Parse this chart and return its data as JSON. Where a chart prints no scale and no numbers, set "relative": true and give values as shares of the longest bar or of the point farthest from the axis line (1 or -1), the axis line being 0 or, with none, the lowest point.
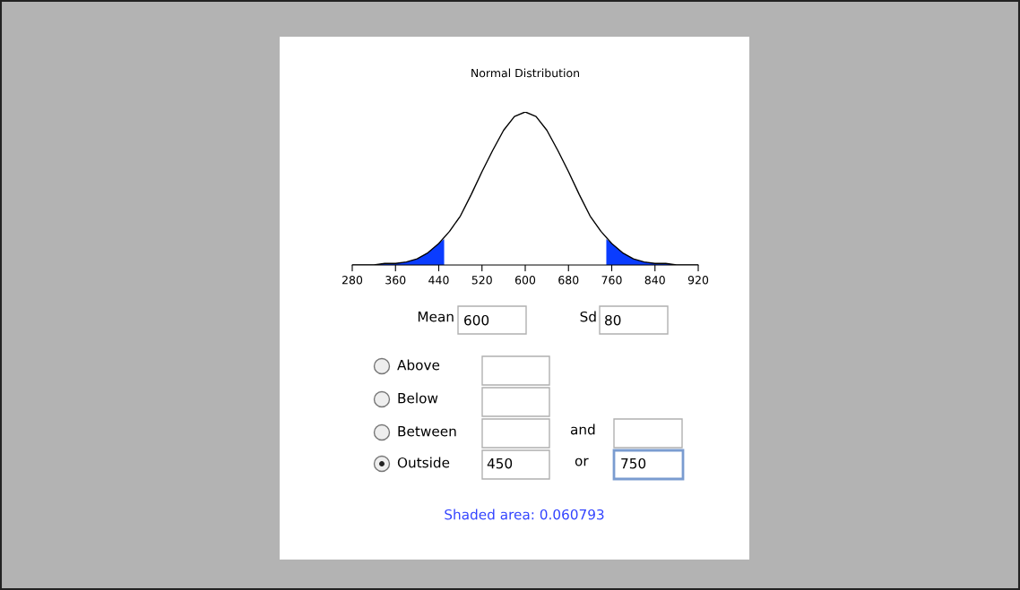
{
  "chart_data": {
    "type": "line",
    "title": "Normal Distribution",
    "relative": true,
    "xlim": [
      280,
      920
    ],
    "xticks": [
      280,
      360,
      440,
      520,
      600,
      680,
      760,
      840,
      920
    ],
    "series": [
      {
        "type": "area",
        "color": "#0a3cff",
        "x": [
          280,
          300,
          320,
          340,
          360,
          380,
          400,
          420,
          440,
          450
        ],
        "values": [
          0.0,
          0.0,
          0.0,
          0.01,
          0.01,
          0.02,
          0.04,
          0.08,
          0.14,
          0.17
        ]
      },
      {
        "type": "area",
        "color": "#0a3cff",
        "x": [
          750,
          760,
          780,
          800,
          820,
          840,
          860,
          880,
          900,
          920
        ],
        "values": [
          0.17,
          0.14,
          0.08,
          0.04,
          0.02,
          0.01,
          0.01,
          0.0,
          0.0,
          0.0
        ]
      },
      {
        "color": "#000000",
        "x": [
          280,
          300,
          320,
          340,
          360,
          380,
          400,
          420,
          440,
          460,
          480,
          500,
          520,
          540,
          560,
          580,
          600,
          620,
          640,
          660,
          680,
          700,
          720,
          740,
          760,
          780,
          800,
          820,
          840,
          860,
          880,
          900,
          920
        ],
        "values": [
          0.0,
          0.0,
          0.0,
          0.01,
          0.01,
          0.02,
          0.04,
          0.08,
          0.14,
          0.22,
          0.32,
          0.46,
          0.61,
          0.75,
          0.88,
          0.97,
          1.0,
          0.97,
          0.88,
          0.75,
          0.61,
          0.46,
          0.32,
          0.22,
          0.14,
          0.08,
          0.04,
          0.02,
          0.01,
          0.01,
          0.0,
          0.0,
          0.0
        ]
      }
    ],
    "annotations": [
      "Mean",
      "600",
      "Sd",
      "80",
      "Above",
      "Below",
      "Between",
      "and",
      "Outside",
      "450",
      "or",
      "750",
      "Shaded area: 0.060793"
    ]
  }
}
